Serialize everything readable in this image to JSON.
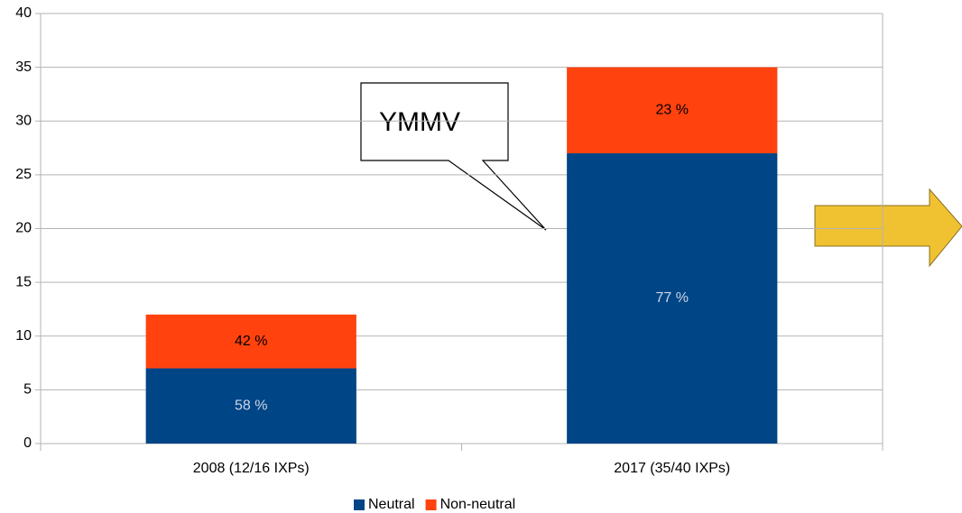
{
  "chart_data": {
    "type": "stacked_bar",
    "categories": [
      "2008 (12/16 IXPs)",
      "2017 (35/40 IXPs)"
    ],
    "series": [
      {
        "name": "Neutral",
        "color": "#004586",
        "values": [
          7,
          27
        ],
        "labels": [
          "58 %",
          "77 %"
        ]
      },
      {
        "name": "Non-neutral",
        "color": "#ff420e",
        "values": [
          5,
          8
        ],
        "labels": [
          "42 %",
          "23 %"
        ]
      }
    ],
    "ylim": [
      0,
      40
    ],
    "yticks": [
      0,
      5,
      10,
      15,
      20,
      25,
      30,
      35,
      40
    ],
    "grid": true,
    "legend": "bottom",
    "annotations": [
      "YMMV"
    ]
  }
}
